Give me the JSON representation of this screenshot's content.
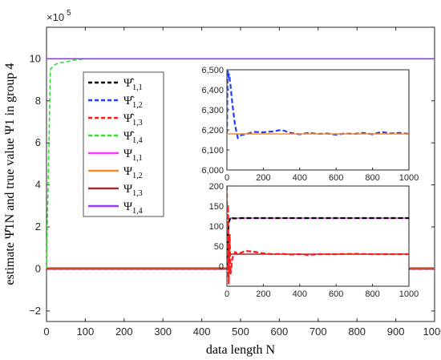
{
  "chart_data": {
    "type": "line",
    "xlabel": "data length N",
    "ylabel": "estimate Ψ̂1N and true value Ψ1 in group 4",
    "exponent_label": "×10^5",
    "x": [
      0,
      10,
      20,
      30,
      50,
      75,
      100,
      150,
      200,
      300,
      400,
      500,
      600,
      700,
      800,
      900,
      1000
    ],
    "xlim": [
      0,
      1000
    ],
    "ylim": [
      -2.5,
      11.5
    ],
    "xticks": [
      "0",
      "100",
      "200",
      "300",
      "400",
      "500",
      "600",
      "700",
      "800",
      "900",
      "1000"
    ],
    "yticks": [
      "−2",
      "0",
      "2",
      "4",
      "6",
      "8",
      "10"
    ],
    "grid": false,
    "legend_position": "left",
    "series": [
      {
        "name": "Ψ̂1,1",
        "style": "dashed",
        "color": "#000000",
        "values": [
          0,
          0.0012,
          0.0012,
          0.0012,
          0.0012,
          0.0012,
          0.0012,
          0.0012,
          0.0012,
          0.0012,
          0.0012,
          0.0012,
          0.0012,
          0.0012,
          0.0012,
          0.0012,
          0.0012
        ]
      },
      {
        "name": "Ψ̂1,2",
        "style": "dashed",
        "color": "#1f3fff",
        "values": [
          0,
          0.065,
          0.063,
          0.0618,
          0.0616,
          0.0618,
          0.0618,
          0.0619,
          0.0618,
          0.0619,
          0.0618,
          0.0618,
          0.0618,
          0.0618,
          0.0619,
          0.0618,
          0.0618
        ]
      },
      {
        "name": "Ψ̂1,3",
        "style": "dashed",
        "color": "#ff1a1a",
        "values": [
          0,
          0.0005,
          0.0004,
          0.0003,
          0.0003,
          0.0003,
          0.0003,
          0.0003,
          0.0003,
          0.0003,
          0.0003,
          0.0003,
          0.0003,
          0.0003,
          0.0003,
          0.0003,
          0.0003
        ]
      },
      {
        "name": "Ψ̂1,4",
        "style": "dashed",
        "color": "#2ee02e",
        "values": [
          0,
          9.5,
          9.7,
          9.8,
          9.85,
          9.95,
          10,
          10,
          10,
          10,
          10,
          10,
          10,
          10,
          10,
          10,
          10
        ]
      },
      {
        "name": "Ψ1,1",
        "style": "solid",
        "color": "#ff33ff",
        "values": [
          0.0012,
          0.0012,
          0.0012,
          0.0012,
          0.0012,
          0.0012,
          0.0012,
          0.0012,
          0.0012,
          0.0012,
          0.0012,
          0.0012,
          0.0012,
          0.0012,
          0.0012,
          0.0012,
          0.0012
        ]
      },
      {
        "name": "Ψ1,2",
        "style": "solid",
        "color": "#f28c28",
        "values": [
          0.0618,
          0.0618,
          0.0618,
          0.0618,
          0.0618,
          0.0618,
          0.0618,
          0.0618,
          0.0618,
          0.0618,
          0.0618,
          0.0618,
          0.0618,
          0.0618,
          0.0618,
          0.0618,
          0.0618
        ]
      },
      {
        "name": "Ψ1,3",
        "style": "solid",
        "color": "#a52a2a",
        "values": [
          0.0003,
          0.0003,
          0.0003,
          0.0003,
          0.0003,
          0.0003,
          0.0003,
          0.0003,
          0.0003,
          0.0003,
          0.0003,
          0.0003,
          0.0003,
          0.0003,
          0.0003,
          0.0003,
          0.0003
        ]
      },
      {
        "name": "Ψ1,4",
        "style": "solid",
        "color": "#9933ff",
        "values": [
          10,
          10,
          10,
          10,
          10,
          10,
          10,
          10,
          10,
          10,
          10,
          10,
          10,
          10,
          10,
          10,
          10
        ]
      }
    ],
    "insets": [
      {
        "xlim": [
          0,
          1000
        ],
        "ylim": [
          6000,
          6500
        ],
        "xticks": [
          "0",
          "200",
          "400",
          "600",
          "800",
          "1000"
        ],
        "yticks": [
          "6,000",
          "6,100",
          "6,200",
          "6,300",
          "6,400",
          "6,500"
        ],
        "series": [
          {
            "name": "Ψ̂1,2",
            "color": "#1f3fff",
            "style": "dashed",
            "x": [
              0,
              4,
              8,
              12,
              20,
              30,
              45,
              60,
              80,
              110,
              150,
              200,
              250,
              300,
              350,
              400,
              450,
              500,
              550,
              600,
              650,
              700,
              750,
              800,
              850,
              900,
              950,
              1000
            ],
            "values": [
              6180,
              6500,
              6460,
              6480,
              6420,
              6330,
              6220,
              6160,
              6175,
              6180,
              6190,
              6188,
              6192,
              6200,
              6185,
              6178,
              6185,
              6180,
              6182,
              6176,
              6182,
              6180,
              6185,
              6178,
              6190,
              6182,
              6185,
              6180
            ]
          },
          {
            "name": "Ψ1,2",
            "color": "#f28c28",
            "style": "solid",
            "x": [
              0,
              1000
            ],
            "values": [
              6180,
              6180
            ]
          }
        ]
      },
      {
        "xlim": [
          0,
          1000
        ],
        "ylim": [
          -50,
          200
        ],
        "xticks": [
          "0",
          "200",
          "400",
          "600",
          "800",
          "1000"
        ],
        "yticks": [
          "0",
          "50",
          "100",
          "150",
          "200"
        ],
        "series": [
          {
            "name": "Ψ1,1",
            "color": "#ff33ff",
            "style": "solid",
            "x": [
              0,
              1000
            ],
            "values": [
              120,
              120
            ]
          },
          {
            "name": "Ψ̂1,1",
            "color": "#000000",
            "style": "dashed",
            "x": [
              0,
              5,
              10,
              20,
              40,
              80,
              150,
              300,
              500,
              700,
              1000
            ],
            "values": [
              0,
              60,
              110,
              121,
              119,
              120,
              120,
              120,
              120,
              120,
              120
            ]
          },
          {
            "name": "Ψ1,3",
            "color": "#a52a2a",
            "style": "solid",
            "x": [
              0,
              1000
            ],
            "values": [
              30,
              30
            ]
          },
          {
            "name": "Ψ̂1,3",
            "color": "#ff1a1a",
            "style": "dashed",
            "x": [
              0,
              3,
              6,
              10,
              15,
              20,
              30,
              45,
              60,
              100,
              150,
              200,
              250,
              300,
              350,
              400,
              450,
              500,
              600,
              700,
              800,
              900,
              1000
            ],
            "values": [
              200,
              -30,
              150,
              -45,
              80,
              -20,
              20,
              35,
              30,
              38,
              36,
              32,
              30,
              31,
              29,
              30,
              28,
              30,
              30,
              31,
              30,
              30,
              30
            ]
          }
        ]
      }
    ]
  }
}
